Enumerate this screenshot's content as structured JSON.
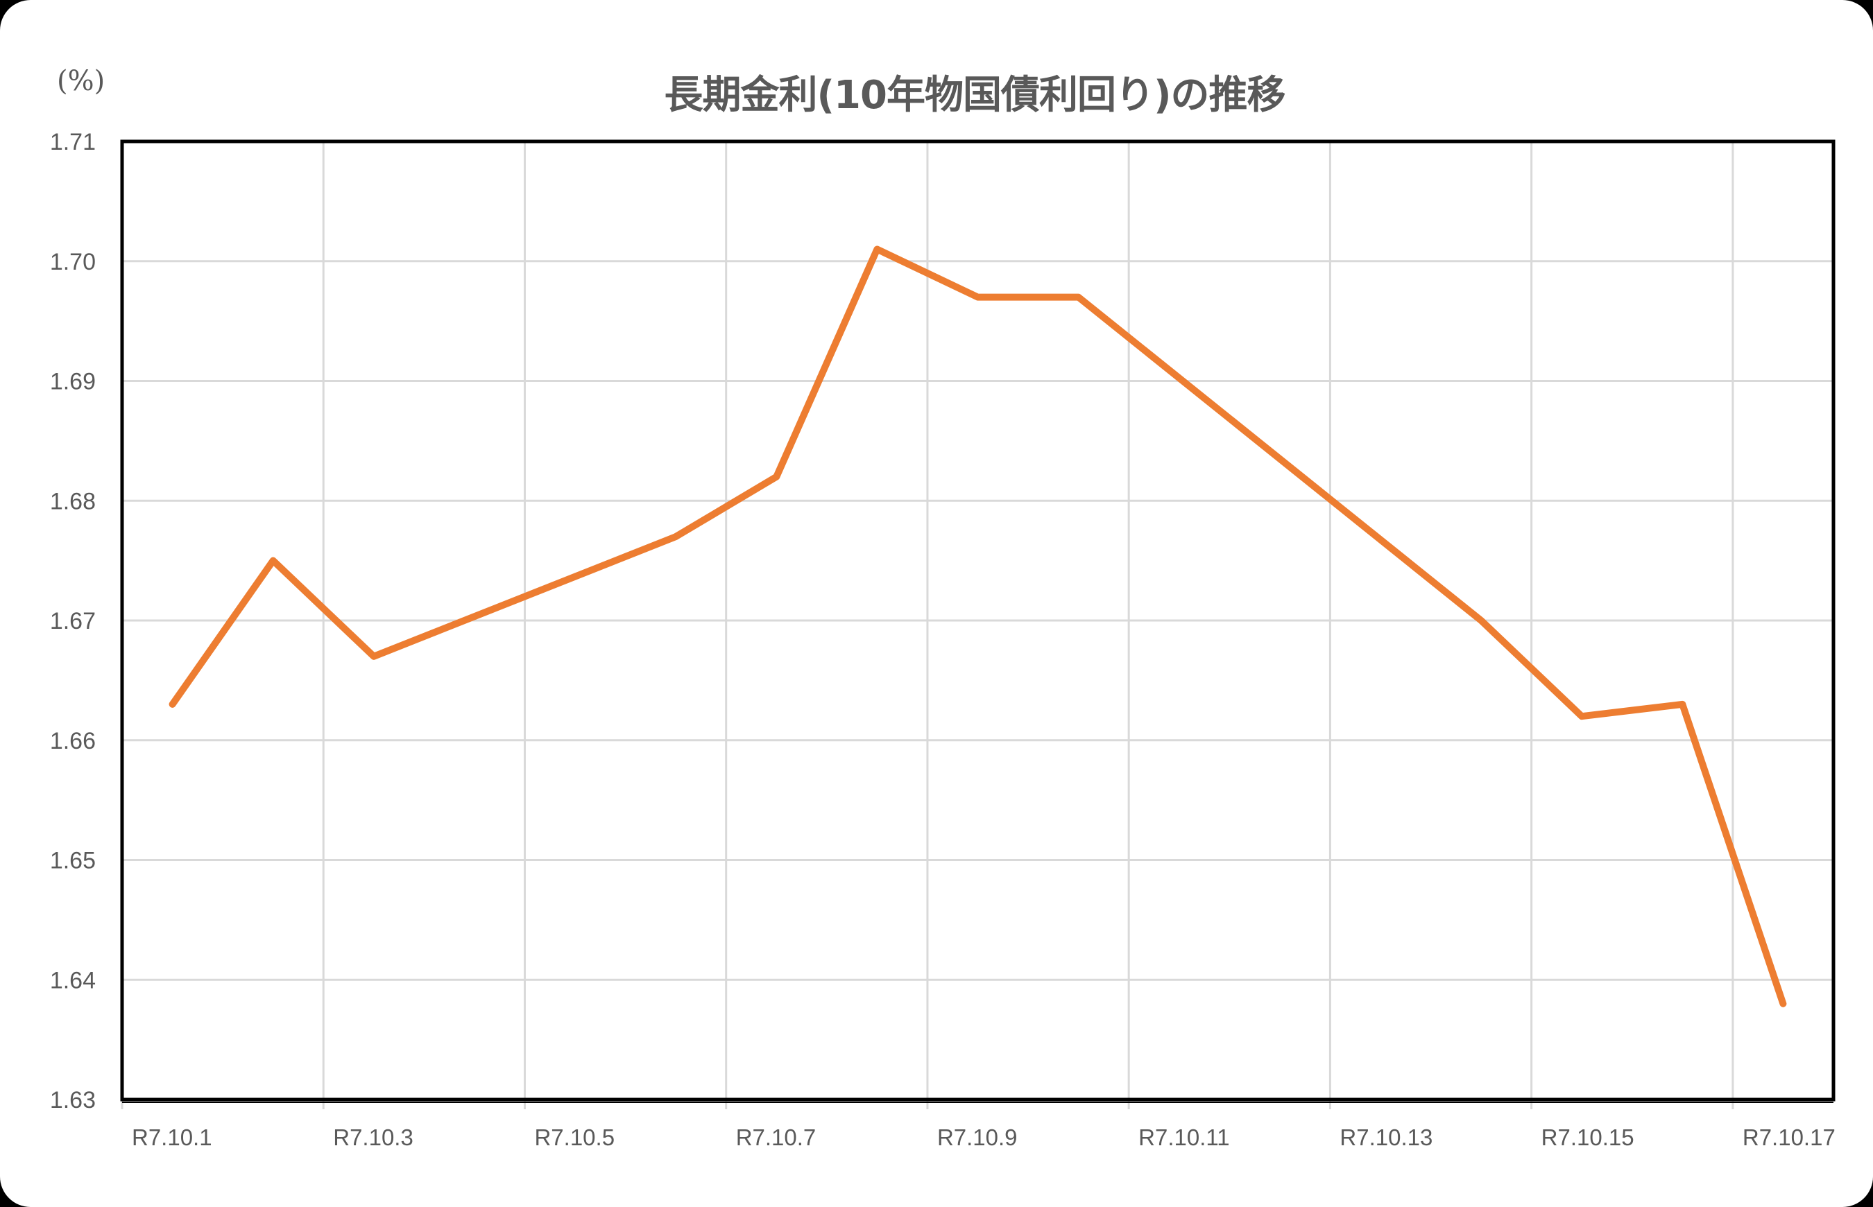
{
  "title": "長期金利(10年物国債利回り)の推移",
  "y_unit_label": "(%)",
  "colors": {
    "line": "#ED7D31",
    "grid": "#D9D9D9",
    "text": "#595959",
    "frame": "#000000"
  },
  "chart_data": {
    "type": "line",
    "title": "長期金利(10年物国債利回り)の推移",
    "xlabel": "",
    "ylabel": "(%)",
    "ylim": [
      1.63,
      1.71
    ],
    "yticks": [
      "1.71",
      "1.70",
      "1.69",
      "1.68",
      "1.67",
      "1.66",
      "1.65",
      "1.64",
      "1.63"
    ],
    "xtick_labels": [
      "R7.10.1",
      "R7.10.3",
      "R7.10.5",
      "R7.10.7",
      "R7.10.9",
      "R7.10.11",
      "R7.10.13",
      "R7.10.15",
      "R7.10.17"
    ],
    "x_axis_type": "date (daily, R7.10.1–R7.10.17)",
    "grid": true,
    "legend": "none",
    "series": [
      {
        "name": "長期金利(10年物国債利回り)",
        "points": [
          {
            "x": "R7.10.1",
            "day": 1,
            "y": 1.663
          },
          {
            "x": "R7.10.2",
            "day": 2,
            "y": 1.675
          },
          {
            "x": "R7.10.3",
            "day": 3,
            "y": 1.667
          },
          {
            "x": "R7.10.6",
            "day": 6,
            "y": 1.677
          },
          {
            "x": "R7.10.7",
            "day": 7,
            "y": 1.682
          },
          {
            "x": "R7.10.8",
            "day": 8,
            "y": 1.701
          },
          {
            "x": "R7.10.9",
            "day": 9,
            "y": 1.697
          },
          {
            "x": "R7.10.10",
            "day": 10,
            "y": 1.697
          },
          {
            "x": "R7.10.14",
            "day": 14,
            "y": 1.67
          },
          {
            "x": "R7.10.15",
            "day": 15,
            "y": 1.662
          },
          {
            "x": "R7.10.16",
            "day": 16,
            "y": 1.663
          },
          {
            "x": "R7.10.17",
            "day": 17,
            "y": 1.638
          }
        ]
      }
    ]
  }
}
